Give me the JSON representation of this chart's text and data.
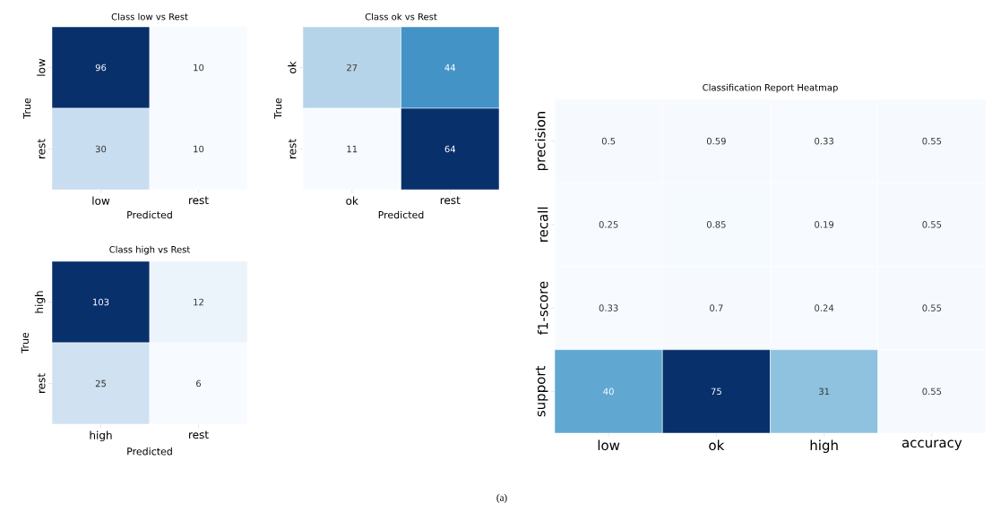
{
  "chart_data": [
    {
      "type": "heatmap",
      "title": "Class low vs Rest",
      "xlabel": "Predicted",
      "ylabel": "True",
      "categories": [
        "low",
        "rest"
      ],
      "y_categories": [
        "low",
        "rest"
      ],
      "cells": [
        [
          96,
          10
        ],
        [
          30,
          10
        ]
      ],
      "data_labels": true
    },
    {
      "type": "heatmap",
      "title": "Class ok vs Rest",
      "xlabel": "Predicted",
      "ylabel": "True",
      "categories": [
        "ok",
        "rest"
      ],
      "y_categories": [
        "ok",
        "rest"
      ],
      "cells": [
        [
          27,
          44
        ],
        [
          11,
          64
        ]
      ],
      "data_labels": true
    },
    {
      "type": "heatmap",
      "title": "Class high vs Rest",
      "xlabel": "Predicted",
      "ylabel": "True",
      "categories": [
        "high",
        "rest"
      ],
      "y_categories": [
        "high",
        "rest"
      ],
      "cells": [
        [
          103,
          12
        ],
        [
          25,
          6
        ]
      ],
      "data_labels": true
    },
    {
      "type": "heatmap",
      "title": "Classification Report Heatmap",
      "categories": [
        "low",
        "ok",
        "high",
        "accuracy"
      ],
      "y_categories": [
        "precision",
        "recall",
        "f1-score",
        "support"
      ],
      "cells": [
        [
          0.5,
          0.59,
          0.33,
          0.55
        ],
        [
          0.25,
          0.85,
          0.19,
          0.55
        ],
        [
          0.33,
          0.7,
          0.24,
          0.55
        ],
        [
          40,
          75,
          31,
          0.55
        ]
      ],
      "data_labels": true,
      "annotations": [
        "(a)"
      ]
    }
  ]
}
